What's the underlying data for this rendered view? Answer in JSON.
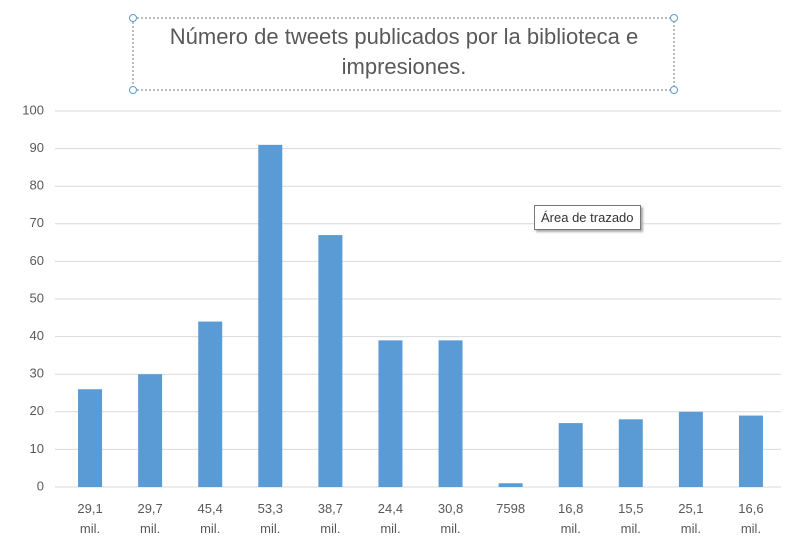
{
  "chart_data": {
    "type": "bar",
    "title": "Número de tweets publicados por la biblioteca e impresiones.",
    "categories": [
      "29,1 mil.",
      "29,7 mil.",
      "45,4 mil.",
      "53,3 mil.",
      "38,7 mil.",
      "24,4 mil.",
      "30,8 mil.",
      "7598",
      "16,8 mil.",
      "15,5 mil.",
      "25,1 mil.",
      "16,6 mil."
    ],
    "values": [
      26,
      30,
      44,
      91,
      67,
      39,
      39,
      1,
      17,
      18,
      20,
      19
    ],
    "color": "#5b9bd5",
    "ylim": [
      0,
      100
    ],
    "yticks": [
      0,
      10,
      20,
      30,
      40,
      50,
      60,
      70,
      80,
      90,
      100
    ],
    "grid": true,
    "tooltip": "Área de trazado"
  }
}
